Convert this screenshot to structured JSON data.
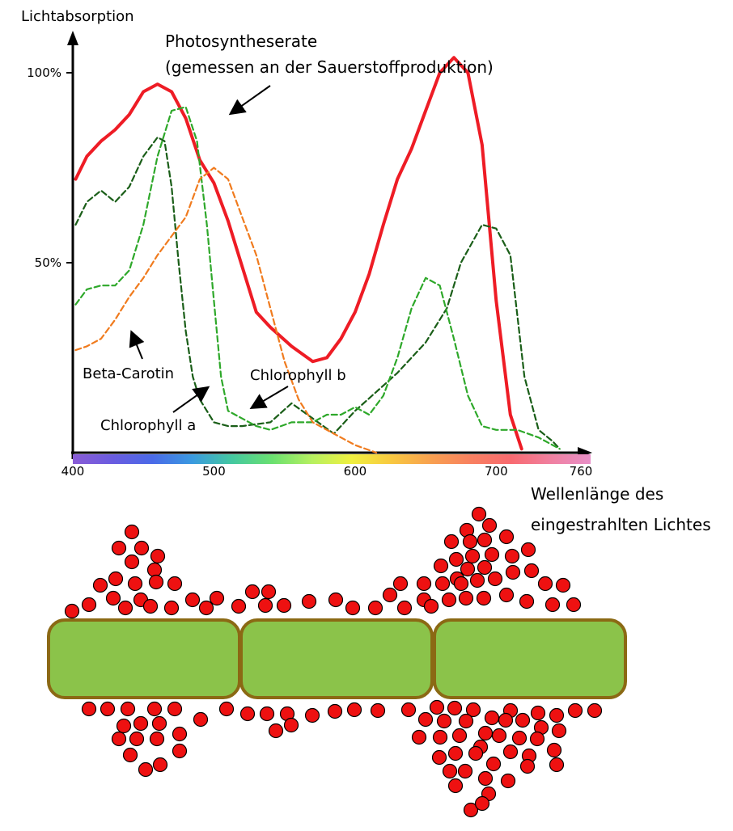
{
  "chart_data": {
    "type": "line",
    "ylabel": "Lichtabsorption",
    "xlabel_lines": [
      "Wellenlänge des",
      "eingestrahlten Lichtes"
    ],
    "xlim": [
      400,
      760
    ],
    "ylim": [
      0,
      100
    ],
    "x_ticks": [
      "400",
      "500",
      "600",
      "700",
      "760"
    ],
    "y_ticks": [
      "50%",
      "100%"
    ],
    "y_tick_values": [
      50,
      100
    ],
    "x_tick_values": [
      400,
      500,
      600,
      700,
      760
    ],
    "grid": false,
    "series": [
      {
        "name": "Photosyntheserate (gemessen an der Sauerstoffproduktion)",
        "color": "#ee1c25",
        "style": "solid",
        "points": [
          [
            402,
            72
          ],
          [
            410,
            78
          ],
          [
            420,
            82
          ],
          [
            430,
            85
          ],
          [
            440,
            89
          ],
          [
            450,
            95
          ],
          [
            460,
            97
          ],
          [
            470,
            95
          ],
          [
            480,
            88
          ],
          [
            490,
            77
          ],
          [
            500,
            71
          ],
          [
            510,
            61
          ],
          [
            520,
            49
          ],
          [
            530,
            37
          ],
          [
            540,
            33
          ],
          [
            555,
            28
          ],
          [
            570,
            24
          ],
          [
            580,
            25
          ],
          [
            590,
            30
          ],
          [
            600,
            37
          ],
          [
            610,
            47
          ],
          [
            620,
            60
          ],
          [
            630,
            72
          ],
          [
            640,
            80
          ],
          [
            650,
            90
          ],
          [
            660,
            100
          ],
          [
            670,
            104
          ],
          [
            680,
            100
          ],
          [
            690,
            81
          ],
          [
            700,
            40
          ],
          [
            710,
            10
          ],
          [
            718,
            1
          ]
        ]
      },
      {
        "name": "Chlorophyll a",
        "color": "#1a5e18",
        "style": "dashed",
        "points": [
          [
            402,
            60
          ],
          [
            410,
            66
          ],
          [
            420,
            69
          ],
          [
            430,
            66
          ],
          [
            440,
            70
          ],
          [
            450,
            78
          ],
          [
            460,
            83
          ],
          [
            465,
            82
          ],
          [
            470,
            70
          ],
          [
            475,
            50
          ],
          [
            480,
            32
          ],
          [
            485,
            20
          ],
          [
            490,
            14
          ],
          [
            500,
            8
          ],
          [
            510,
            7
          ],
          [
            520,
            7
          ],
          [
            540,
            8
          ],
          [
            555,
            13
          ],
          [
            570,
            9
          ],
          [
            585,
            5
          ],
          [
            600,
            11
          ],
          [
            615,
            16
          ],
          [
            630,
            21
          ],
          [
            650,
            29
          ],
          [
            665,
            38
          ],
          [
            675,
            50
          ],
          [
            690,
            60
          ],
          [
            700,
            59
          ],
          [
            710,
            52
          ],
          [
            720,
            20
          ],
          [
            730,
            6
          ],
          [
            740,
            3
          ],
          [
            745,
            1
          ]
        ]
      },
      {
        "name": "Chlorophyll b",
        "color": "#2ea82a",
        "style": "dashed",
        "points": [
          [
            402,
            39
          ],
          [
            410,
            43
          ],
          [
            420,
            44
          ],
          [
            430,
            44
          ],
          [
            440,
            48
          ],
          [
            450,
            60
          ],
          [
            460,
            78
          ],
          [
            470,
            90
          ],
          [
            480,
            91
          ],
          [
            488,
            82
          ],
          [
            495,
            60
          ],
          [
            500,
            40
          ],
          [
            505,
            20
          ],
          [
            510,
            11
          ],
          [
            520,
            9
          ],
          [
            530,
            7
          ],
          [
            540,
            6
          ],
          [
            555,
            8
          ],
          [
            570,
            8
          ],
          [
            580,
            10
          ],
          [
            590,
            10
          ],
          [
            600,
            12
          ],
          [
            610,
            10
          ],
          [
            620,
            15
          ],
          [
            630,
            25
          ],
          [
            640,
            38
          ],
          [
            650,
            46
          ],
          [
            660,
            44
          ],
          [
            670,
            30
          ],
          [
            680,
            15
          ],
          [
            690,
            7
          ],
          [
            700,
            6
          ],
          [
            715,
            6
          ],
          [
            730,
            4
          ],
          [
            745,
            1
          ]
        ]
      },
      {
        "name": "Beta-Carotin",
        "color": "#f07b1e",
        "style": "dashed",
        "points": [
          [
            402,
            27
          ],
          [
            410,
            28
          ],
          [
            420,
            30
          ],
          [
            430,
            35
          ],
          [
            440,
            41
          ],
          [
            450,
            46
          ],
          [
            460,
            52
          ],
          [
            470,
            57
          ],
          [
            480,
            62
          ],
          [
            490,
            72
          ],
          [
            500,
            75
          ],
          [
            510,
            72
          ],
          [
            520,
            62
          ],
          [
            530,
            52
          ],
          [
            540,
            38
          ],
          [
            550,
            24
          ],
          [
            560,
            14
          ],
          [
            570,
            8
          ],
          [
            580,
            6
          ],
          [
            590,
            4
          ],
          [
            600,
            2
          ],
          [
            615,
            0
          ]
        ]
      }
    ],
    "annotations": {
      "photo_line1": "Photosyntheserate",
      "photo_line2": "(gemessen an der Sauerstoffproduktion)",
      "beta": "Beta-Carotin",
      "chl_a": "Chlorophyll a",
      "chl_b": "Chlorophyll b"
    },
    "spectrum_colors": [
      "#8a5cd6",
      "#6a5ce0",
      "#4a6ae8",
      "#3a9ae0",
      "#44c8a0",
      "#6ae070",
      "#b6f060",
      "#f0f040",
      "#f8c840",
      "#f8a050",
      "#f88060",
      "#f86a70",
      "#f080a0",
      "#e890c8"
    ]
  },
  "diagram": {
    "algae_fill": "#8bc34a",
    "algae_stroke": "#8b6914",
    "bubble_fill": "#ee1111",
    "bubble_stroke": "#000000"
  }
}
